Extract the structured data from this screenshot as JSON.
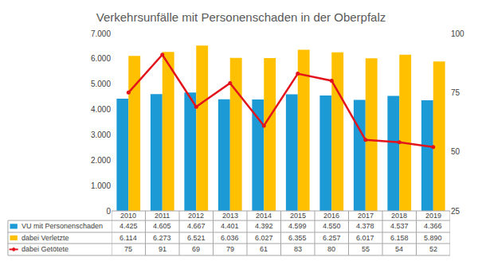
{
  "chart_data": {
    "type": "bar",
    "title": "Verkehrsunfälle mit Personenschaden in der Oberpfalz",
    "categories": [
      "2010",
      "2011",
      "2012",
      "2013",
      "2014",
      "2015",
      "2016",
      "2017",
      "2018",
      "2019"
    ],
    "series": [
      {
        "name": "VU mit Personenschaden",
        "type": "bar",
        "color": "#1b9ad6",
        "values": [
          4425,
          4605,
          4667,
          4401,
          4392,
          4599,
          4550,
          4378,
          4537,
          4366
        ],
        "value_labels": [
          "4.425",
          "4.605",
          "4.667",
          "4.401",
          "4.392",
          "4.599",
          "4.550",
          "4.378",
          "4.537",
          "4.366"
        ]
      },
      {
        "name": "dabei Verletzte",
        "type": "bar",
        "color": "#ffc000",
        "values": [
          6114,
          6273,
          6521,
          6036,
          6027,
          6355,
          6257,
          6017,
          6158,
          5890
        ],
        "value_labels": [
          "6.114",
          "6.273",
          "6.521",
          "6.036",
          "6.027",
          "6.355",
          "6.257",
          "6.017",
          "6.158",
          "5.890"
        ]
      },
      {
        "name": "dabei Getötete",
        "type": "line",
        "axis": "y2",
        "color": "#e3131b",
        "marker": "circle",
        "values": [
          75,
          91,
          69,
          79,
          61,
          83,
          80,
          55,
          54,
          52
        ]
      }
    ],
    "ylim": [
      0,
      7000
    ],
    "yticks": [
      0,
      {
        "value": 1000,
        "label": "1.000"
      },
      {
        "value": 2000,
        "label": "2.000"
      },
      {
        "value": 3000,
        "label": "3.000"
      },
      {
        "value": 4000,
        "label": "4.000"
      },
      {
        "value": 5000,
        "label": "5.000"
      },
      {
        "value": 6000,
        "label": "6.000"
      },
      {
        "value": 7000,
        "label": "7.000"
      }
    ],
    "y2lim": [
      25,
      100
    ],
    "y2ticks": [
      25,
      50,
      75,
      100
    ],
    "grid": false
  }
}
